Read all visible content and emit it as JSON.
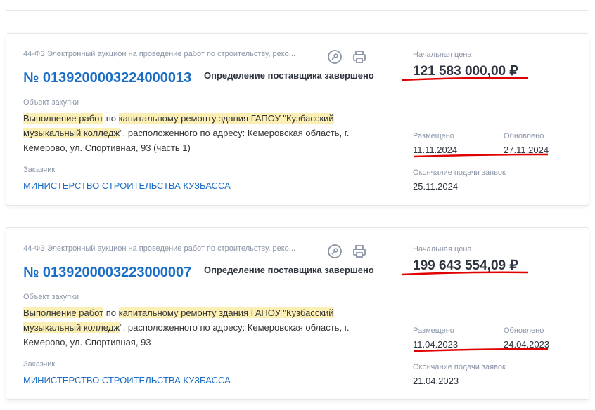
{
  "cards": [
    {
      "subtitle": "44-ФЗ Электронный аукцион на проведение работ по строительству, реко...",
      "number": "№ 0139200003224000013",
      "status": "Определение поставщика завершено",
      "object_label": "Объект закупки",
      "desc": {
        "h1": "Выполнение работ",
        "t1": " по ",
        "h2": "капитальному ремонту здания ГАПОУ \"Кузбасский музыкальный колледж",
        "t2": "\", расположенного по адресу: Кемеровская область, г. Кемерово, ул. Спортивная, 93 (часть 1)"
      },
      "customer_label": "Заказчик",
      "customer": "МИНИСТЕРСТВО СТРОИТЕЛЬСТВА КУЗБАССА",
      "price_label": "Начальная цена",
      "price": "121 583 000,00 ₽",
      "posted_label": "Размещено",
      "posted": "11.11.2024",
      "updated_label": "Обновлено",
      "updated": "27.11.2024",
      "deadline_label": "Окончание подачи заявок",
      "deadline": "25.11.2024"
    },
    {
      "subtitle": "44-ФЗ Электронный аукцион на проведение работ по строительству, реко...",
      "number": "№ 0139200003223000007",
      "status": "Определение поставщика завершено",
      "object_label": "Объект закупки",
      "desc": {
        "h1": "Выполнение работ",
        "t1": " по ",
        "h2": "капитальному ремонту здания ГАПОУ \"Кузбасский музыкальный колледж",
        "t2": "\", расположенного по адресу: Кемеровская область, г. Кемерово, ул. Спортивная, 93"
      },
      "customer_label": "Заказчик",
      "customer": "МИНИСТЕРСТВО СТРОИТЕЛЬСТВА КУЗБАССА",
      "price_label": "Начальная цена",
      "price": "199 643 554,09 ₽",
      "posted_label": "Размещено",
      "posted": "11.04.2023",
      "updated_label": "Обновлено",
      "updated": "24.04.2023",
      "deadline_label": "Окончание подачи заявок",
      "deadline": "21.04.2023"
    }
  ],
  "icons": [
    "key-icon",
    "print-icon"
  ],
  "colors": {
    "link": "#1a6dc6",
    "highlight": "#fbefb6",
    "annotation": "#e00000"
  }
}
